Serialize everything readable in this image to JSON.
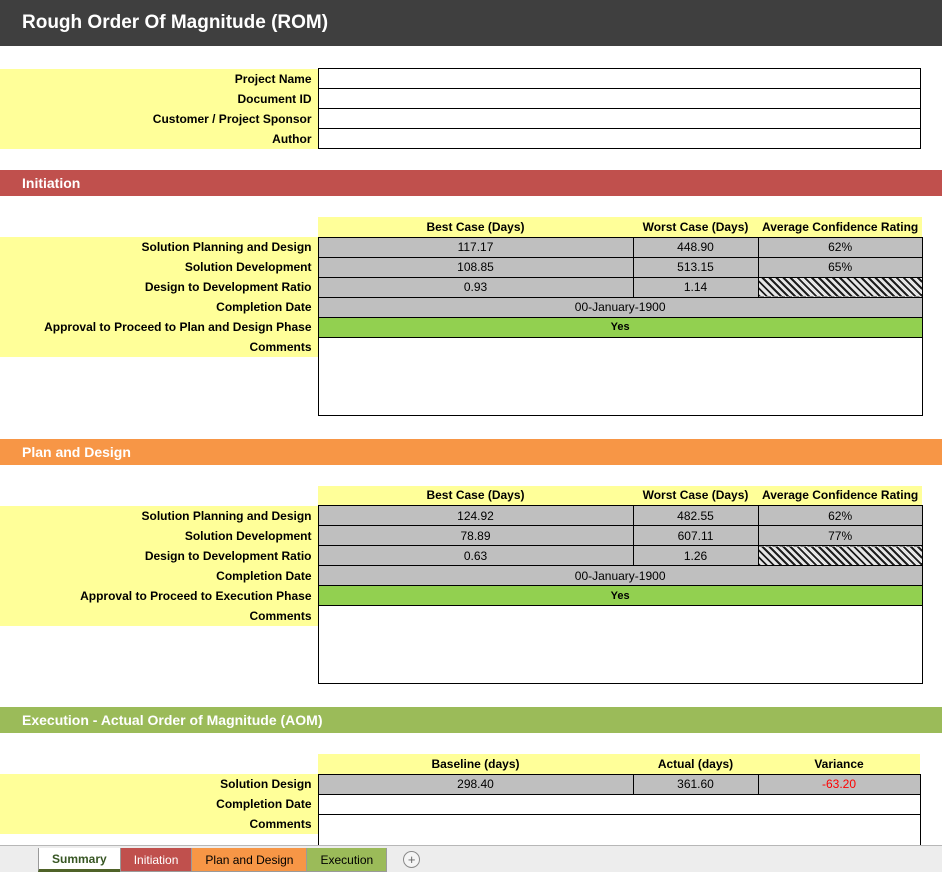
{
  "header": {
    "title": "Rough Order Of Magnitude (ROM)"
  },
  "project_info": {
    "fields": [
      {
        "label": "Project Name",
        "value": ""
      },
      {
        "label": "Document ID",
        "value": ""
      },
      {
        "label": "Customer / Project Sponsor",
        "value": ""
      },
      {
        "label": "Author",
        "value": ""
      }
    ]
  },
  "sections": [
    {
      "title": "Initiation",
      "accent": "#C0504D",
      "columns": [
        "Best Case (Days)",
        "Worst Case (Days)",
        "Average Confidence Rating"
      ],
      "rows": [
        {
          "label": "Solution Planning and Design",
          "best": "117.17",
          "worst": "448.90",
          "confidence": "62%"
        },
        {
          "label": "Solution Development",
          "best": "108.85",
          "worst": "513.15",
          "confidence": "65%"
        },
        {
          "label": "Design to Development Ratio",
          "best": "0.93",
          "worst": "1.14",
          "confidence": ""
        }
      ],
      "completion": {
        "label": "Completion Date",
        "value": "00-January-1900"
      },
      "approval": {
        "label": "Approval to Proceed to Plan and Design Phase",
        "value": "Yes"
      },
      "comments": {
        "label": "Comments",
        "value": ""
      }
    },
    {
      "title": "Plan and Design",
      "accent": "#F79646",
      "columns": [
        "Best Case (Days)",
        "Worst Case (Days)",
        "Average Confidence Rating"
      ],
      "rows": [
        {
          "label": "Solution Planning and Design",
          "best": "124.92",
          "worst": "482.55",
          "confidence": "62%"
        },
        {
          "label": "Solution Development",
          "best": "78.89",
          "worst": "607.11",
          "confidence": "77%"
        },
        {
          "label": "Design to Development Ratio",
          "best": "0.63",
          "worst": "1.26",
          "confidence": ""
        }
      ],
      "completion": {
        "label": "Completion Date",
        "value": "00-January-1900"
      },
      "approval": {
        "label": "Approval to Proceed to Execution Phase",
        "value": "Yes"
      },
      "comments": {
        "label": "Comments",
        "value": ""
      }
    }
  ],
  "execution": {
    "title": "Execution - Actual Order of Magnitude (AOM)",
    "accent": "#9BBB59",
    "columns": [
      "Baseline (days)",
      "Actual (days)",
      "Variance"
    ],
    "rows": [
      {
        "label": "Solution Design",
        "baseline": "298.40",
        "actual": "361.60",
        "variance": "-63.20"
      }
    ],
    "completion": {
      "label": "Completion Date",
      "value": ""
    },
    "comments": {
      "label": "Comments",
      "value": ""
    }
  },
  "colors": {
    "title_bar": "#3F3F3F",
    "label_yellow": "#FFFF99",
    "cell_gray": "#BFBFBF",
    "approval_green": "#92D050",
    "variance_red": "#FF0000",
    "initiation_accent": "#C0504D",
    "plan_design_accent": "#F79646",
    "execution_accent": "#9BBB59"
  },
  "tabs": [
    {
      "label": "Summary",
      "active": true
    },
    {
      "label": "Initiation",
      "active": false
    },
    {
      "label": "Plan and Design",
      "active": false
    },
    {
      "label": "Execution",
      "active": false
    }
  ],
  "tab_bar": {
    "add_sheet": "+"
  }
}
